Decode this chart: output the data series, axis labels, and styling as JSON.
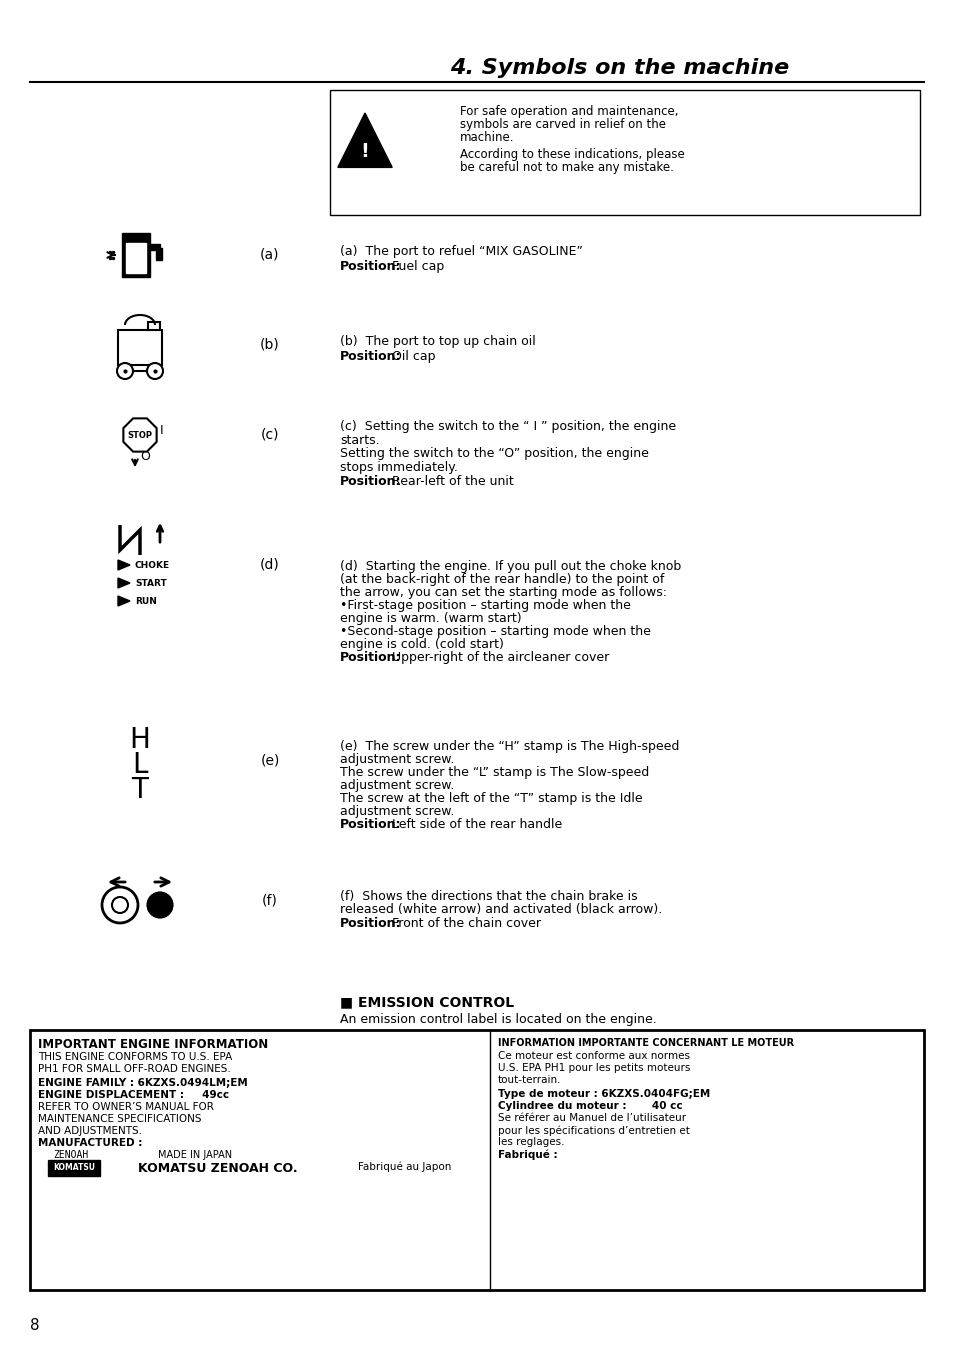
{
  "title": "4. Symbols on the machine",
  "page_number": "8",
  "background_color": "#ffffff",
  "text_color": "#000000",
  "warning_box": {
    "text1": "For safe operation and maintenance,",
    "text2": "symbols are carved in relief on the",
    "text3": "machine.",
    "text4": "According to these indications, please",
    "text5": "be careful not to make any mistake."
  },
  "items": [
    {
      "label": "(a)",
      "desc_line1": "(a)  The port to refuel “MIX GASOLINE”",
      "desc_line2": "Position: Fuel cap",
      "desc_bold": "Position:"
    },
    {
      "label": "(b)",
      "desc_line1": "(b)  The port to top up chain oil",
      "desc_line2": "Position: Oil cap",
      "desc_bold": "Position:"
    },
    {
      "label": "(c)",
      "desc_line1": "(c)  Setting the switch to the “ I ” position, the engine",
      "desc_line2": "starts.",
      "desc_line3": "Setting the switch to the “O” position, the engine",
      "desc_line4": "stops immediately.",
      "desc_line5": "Position: Rear-left of the unit",
      "desc_bold": "Position:"
    },
    {
      "label": "(d)",
      "desc_line1": "(d)  Starting the engine. If you pull out the choke knob",
      "desc_line2": "(at the back-right of the rear handle) to the point of",
      "desc_line3": "the arrow, you can set the starting mode as follows:",
      "desc_line4": "•First-stage position – starting mode when the",
      "desc_line5": "engine is warm. (warm start)",
      "desc_line6": "•Second-stage position – starting mode when the",
      "desc_line7": "engine is cold. (cold start)",
      "desc_line8": "Position: Upper-right of the aircleaner cover",
      "desc_bold": "Position:"
    },
    {
      "label": "(e)",
      "desc_line1": "(e)  The screw under the “H” stamp is The High-speed",
      "desc_line2": "adjustment screw.",
      "desc_line3": "The screw under the “L” stamp is The Slow-speed",
      "desc_line4": "adjustment screw.",
      "desc_line5": "The screw at the left of the “T” stamp is the Idle",
      "desc_line6": "adjustment screw.",
      "desc_line7": "Position: Left side of the rear handle",
      "desc_bold": "Position:"
    },
    {
      "label": "(f)",
      "desc_line1": "(f)  Shows the directions that the chain brake is",
      "desc_line2": "released (white arrow) and activated (black arrow).",
      "desc_line3": "Position: Front of the chain cover",
      "desc_bold": "Position:"
    }
  ],
  "emission_header": "■ EMISSION CONTROL",
  "emission_text": "An emission control label is located on the engine.",
  "engine_info_en": {
    "title": "IMPORTANT ENGINE INFORMATION",
    "line1": "THIS ENGINE CONFORMS TO U.S. EPA",
    "line2": "PH1 FOR SMALL OFF-ROAD ENGINES.",
    "line3_bold": "ENGINE FAMILY : 6KZXS.0494LM;EM",
    "line4_bold": "ENGINE DISPLACEMENT :     49cc",
    "line5": "REFER TO OWNER’S MANUAL FOR",
    "line6": "MAINTENANCE SPECIFICATIONS",
    "line7": "AND ADJUSTMENTS.",
    "line8_bold": "MANUFACTURED :",
    "line9": "ZENOAH          MADE IN JAPAN",
    "line10": "KOMATSU          KOMATSU ZENOAH CO."
  },
  "engine_info_fr": {
    "title": "INFORMATION IMPORTANTE CONCERNANT LE MOTEUR",
    "line1": "Ce moteur est conforme aux normes",
    "line2": "U.S. EPA PH1 pour les petits moteurs",
    "line3": "tout-terrain.",
    "line4_bold": "Type de moteur : 6KZXS.0404FG;EM",
    "line5_bold": "Cylindree du moteur :       40 cc",
    "line6": "Se référer au Manuel de l’utilisateur",
    "line7": "pour les spécifications d’entretien et",
    "line8": "les reglages.",
    "line9_bold": "Fabriqué :",
    "line10": "Fabriqué au Japon"
  }
}
